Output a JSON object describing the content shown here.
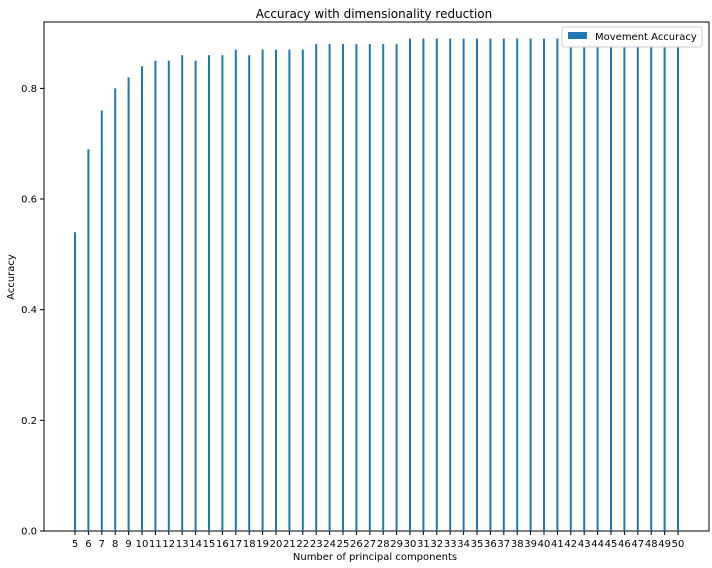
{
  "chart_data": {
    "type": "bar",
    "title": "Accuracy with dimensionality reduction",
    "xlabel": "Number of principal components",
    "ylabel": "Accuracy",
    "ylim": [
      0,
      0.92
    ],
    "y_ticks": [
      "0.0",
      "0.2",
      "0.4",
      "0.6",
      "0.8"
    ],
    "grid": false,
    "legend_position": "top-right",
    "colors": {
      "series": "#1f77b4",
      "axis": "#000000",
      "legend_border": "#cccccc"
    },
    "categories": [
      "5",
      "6",
      "7",
      "8",
      "9",
      "10",
      "11",
      "12",
      "13",
      "14",
      "15",
      "16",
      "17",
      "18",
      "19",
      "20",
      "21",
      "22",
      "23",
      "24",
      "25",
      "26",
      "27",
      "28",
      "29",
      "30",
      "31",
      "32",
      "33",
      "34",
      "35",
      "36",
      "37",
      "38",
      "39",
      "40",
      "41",
      "42",
      "43",
      "44",
      "45",
      "46",
      "47",
      "48",
      "49",
      "50"
    ],
    "series": [
      {
        "name": "Movement Accuracy",
        "values": [
          0.54,
          0.69,
          0.76,
          0.8,
          0.82,
          0.84,
          0.85,
          0.85,
          0.86,
          0.85,
          0.86,
          0.86,
          0.87,
          0.86,
          0.87,
          0.87,
          0.87,
          0.87,
          0.88,
          0.88,
          0.88,
          0.88,
          0.88,
          0.88,
          0.88,
          0.89,
          0.89,
          0.89,
          0.89,
          0.89,
          0.89,
          0.89,
          0.89,
          0.89,
          0.89,
          0.89,
          0.89,
          0.89,
          0.89,
          0.89,
          0.89,
          0.89,
          0.89,
          0.89,
          0.89,
          0.89
        ]
      }
    ]
  }
}
